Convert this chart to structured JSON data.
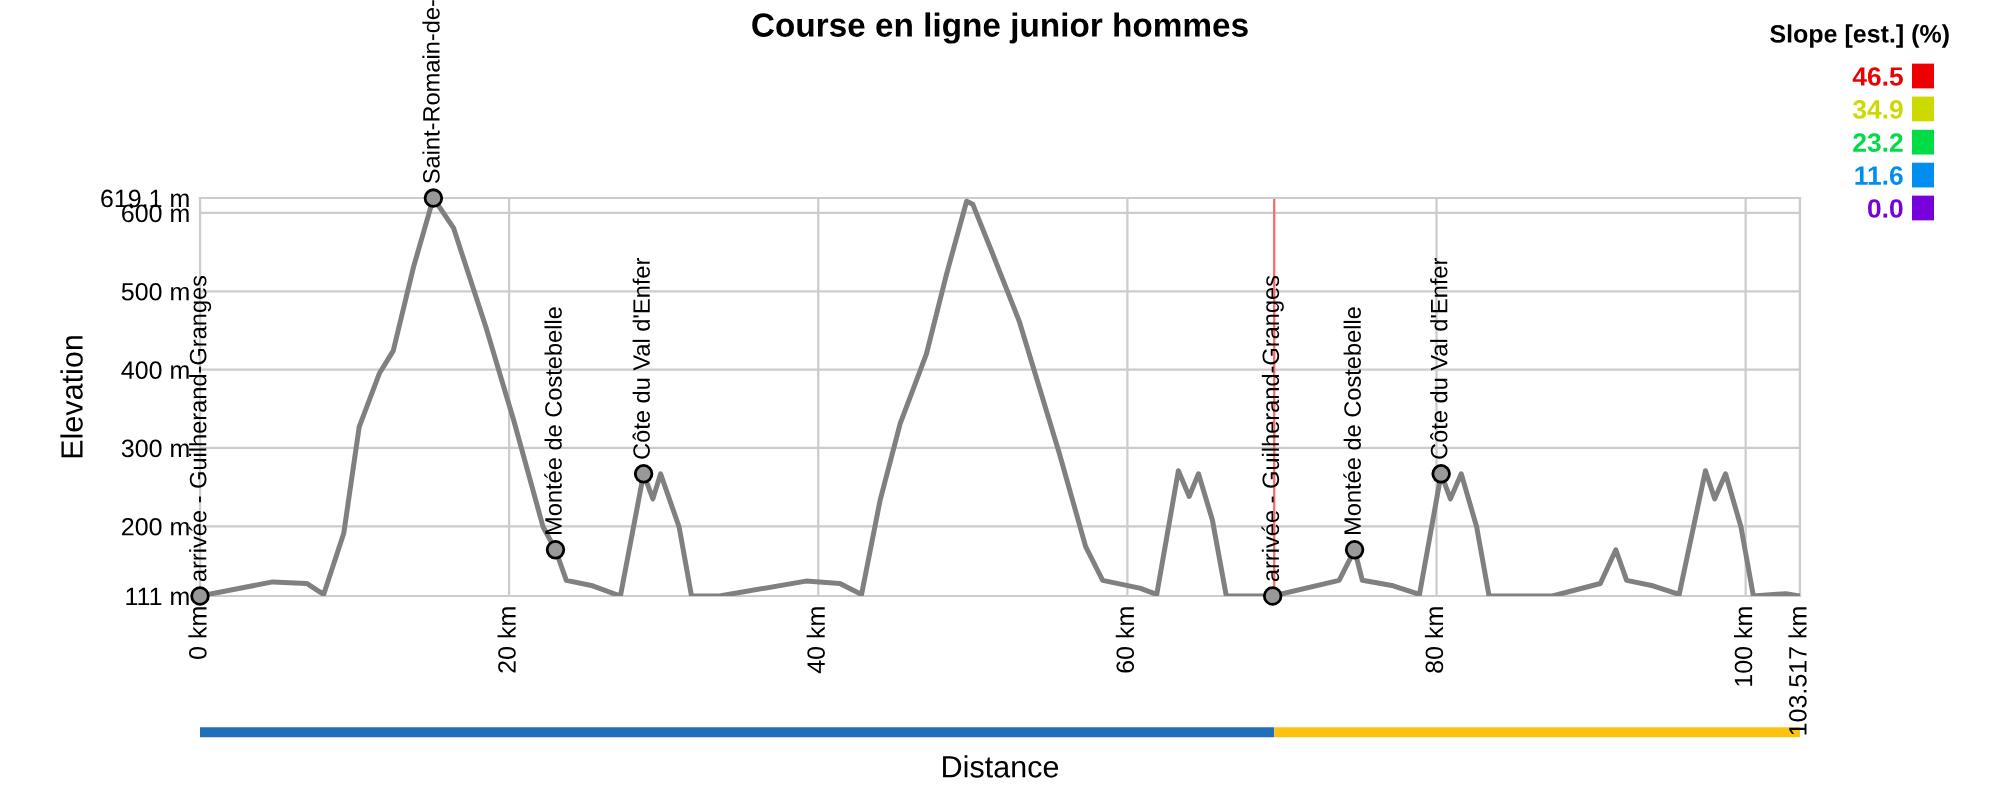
{
  "chart_data": {
    "type": "line",
    "title": "Course en ligne junior hommes",
    "xlabel": "Distance",
    "ylabel": "Elevation",
    "series": [
      {
        "color": "#808080",
        "x": [
          0,
          4.7,
          6.9,
          8.0,
          9.3,
          10.3,
          11.6,
          12.5,
          13.8,
          15.1,
          16.4,
          18.5,
          20.3,
          22.2,
          23.0,
          23.7,
          25.4,
          27.2,
          28.7,
          29.3,
          29.8,
          31.0,
          31.8,
          33.6,
          39.2,
          41.4,
          42.8,
          44.0,
          45.3,
          47.0,
          48.3,
          49.6,
          50.0,
          51.3,
          53.0,
          55.6,
          57.3,
          58.4,
          60.8,
          61.9,
          63.3,
          64.0,
          64.6,
          65.5,
          66.4,
          69.4,
          73.7,
          74.7,
          75.2,
          77.2,
          78.9,
          80.3,
          80.9,
          81.6,
          82.6,
          83.4,
          87.5,
          90.6,
          91.6,
          92.3,
          94.0,
          95.7,
          97.4,
          98.0,
          98.7,
          99.7,
          100.5,
          102.6,
          103.5
        ],
        "values": [
          111,
          129,
          127,
          113,
          191,
          327,
          395,
          424,
          530,
          619,
          581,
          454,
          335,
          199,
          170,
          131,
          124,
          111,
          267,
          235,
          267,
          199,
          111,
          111,
          130,
          127,
          113,
          233,
          331,
          420,
          522,
          615,
          611,
          547,
          462,
          293,
          174,
          131,
          121,
          113,
          271,
          238,
          267,
          208,
          111,
          111,
          131,
          170,
          131,
          124,
          113,
          267,
          235,
          267,
          199,
          111,
          111,
          127,
          170,
          131,
          124,
          113,
          271,
          235,
          267,
          199,
          111,
          114,
          111
        ]
      }
    ],
    "xlim": [
      0,
      103.517
    ],
    "ylim": [
      111,
      619.1
    ],
    "xticks": [
      {
        "value": 0,
        "label": "0 km"
      },
      {
        "value": 20,
        "label": "20 km"
      },
      {
        "value": 40,
        "label": "40 km"
      },
      {
        "value": 60,
        "label": "60 km"
      },
      {
        "value": 80,
        "label": "80 km"
      },
      {
        "value": 100,
        "label": "100 km"
      },
      {
        "value": 103.517,
        "label": "103.517 km"
      }
    ],
    "yticks": [
      {
        "value": 111,
        "label": "111 m"
      },
      {
        "value": 200,
        "label": "200 m"
      },
      {
        "value": 300,
        "label": "300 m"
      },
      {
        "value": 400,
        "label": "400 m"
      },
      {
        "value": 500,
        "label": "500 m"
      },
      {
        "value": 600,
        "label": "600 m"
      },
      {
        "value": 619.1,
        "label": "619.1 m"
      }
    ],
    "grid": true,
    "ref_lines": [
      {
        "axis": "x",
        "value": 69.5,
        "color": "#ff6666"
      }
    ],
    "annotations": [
      {
        "text": "arrivée - Guilherand-Granges",
        "x": 0,
        "y": 111
      },
      {
        "text": "Saint-Romain-de-",
        "x": 15.1,
        "y": 619
      },
      {
        "text": "Montée de Costebelle",
        "x": 23.0,
        "y": 170
      },
      {
        "text": "Côte du Val d'Enfer",
        "x": 28.7,
        "y": 267
      },
      {
        "text": "arrivée - Guilherand-Granges",
        "x": 69.4,
        "y": 111
      },
      {
        "text": "Montée de Costebelle",
        "x": 74.7,
        "y": 170
      },
      {
        "text": "Côte du Val d'Enfer",
        "x": 80.3,
        "y": 267
      }
    ],
    "clabel": "Slope [est.] (%)",
    "cticks": [
      46.5,
      34.9,
      23.2,
      11.6,
      {
        "value": 0,
        "label": "0.0"
      }
    ]
  }
}
